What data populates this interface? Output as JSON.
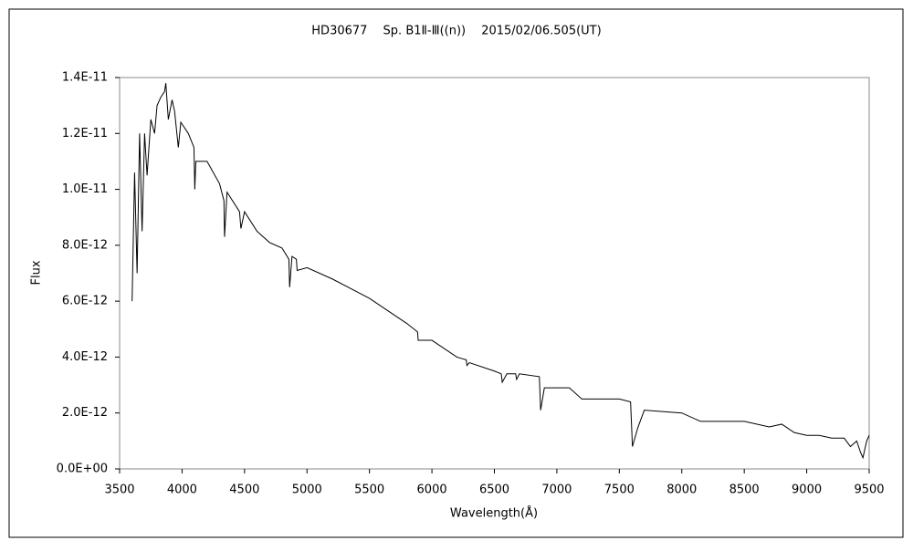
{
  "chart_data": {
    "type": "line",
    "title": "HD30677　 Sp. B1Ⅱ-Ⅲ((n))　 2015/02/06.505(UT)",
    "xlabel": "Wavelength(Å)",
    "ylabel": "Flux",
    "x": [
      3600,
      3620,
      3640,
      3660,
      3680,
      3700,
      3720,
      3750,
      3780,
      3800,
      3830,
      3860,
      3870,
      3890,
      3920,
      3940,
      3970,
      3990,
      4050,
      4095,
      4102,
      4110,
      4200,
      4300,
      4335,
      4340,
      4360,
      4460,
      4471,
      4500,
      4600,
      4700,
      4800,
      4855,
      4861,
      4880,
      4915,
      4921,
      5000,
      5200,
      5500,
      5800,
      5885,
      5890,
      6000,
      6200,
      6275,
      6280,
      6300,
      6500,
      6555,
      6563,
      6600,
      6670,
      6678,
      6700,
      6860,
      6870,
      6900,
      7000,
      7100,
      7200,
      7300,
      7500,
      7590,
      7605,
      7650,
      7700,
      8000,
      8150,
      8500,
      8700,
      8800,
      8900,
      9000,
      9100,
      9200,
      9300,
      9350,
      9400,
      9430,
      9450,
      9480,
      9500
    ],
    "series": [
      {
        "name": "Flux",
        "color": "#000000",
        "values": [
          6e-12,
          1.06e-11,
          7e-12,
          1.2e-11,
          8.5e-12,
          1.2e-11,
          1.05e-11,
          1.25e-11,
          1.2e-11,
          1.3e-11,
          1.33e-11,
          1.35e-11,
          1.38e-11,
          1.25e-11,
          1.32e-11,
          1.28e-11,
          1.15e-11,
          1.24e-11,
          1.2e-11,
          1.15e-11,
          1e-11,
          1.1e-11,
          1.1e-11,
          1.02e-11,
          9.6e-12,
          8.3e-12,
          9.9e-12,
          9.2e-12,
          8.6e-12,
          9.2e-12,
          8.5e-12,
          8.1e-12,
          7.9e-12,
          7.5e-12,
          6.5e-12,
          7.6e-12,
          7.5e-12,
          7.1e-12,
          7.2e-12,
          6.8e-12,
          6.1e-12,
          5.2e-12,
          4.9e-12,
          4.6e-12,
          4.6e-12,
          4e-12,
          3.9e-12,
          3.7e-12,
          3.8e-12,
          3.5e-12,
          3.4e-12,
          3.1e-12,
          3.4e-12,
          3.4e-12,
          3.2e-12,
          3.4e-12,
          3.3e-12,
          2.1e-12,
          2.9e-12,
          2.9e-12,
          2.9e-12,
          2.5e-12,
          2.5e-12,
          2.5e-12,
          2.4e-12,
          8e-13,
          1.5e-12,
          2.1e-12,
          2e-12,
          1.7e-12,
          1.7e-12,
          1.5e-12,
          1.6e-12,
          1.3e-12,
          1.2e-12,
          1.2e-12,
          1.1e-12,
          1.1e-12,
          8e-13,
          1e-12,
          6e-13,
          4e-13,
          1e-12,
          1.2e-12
        ]
      }
    ],
    "xlim": [
      3500,
      9500
    ],
    "xticks": [
      3500,
      4000,
      4500,
      5000,
      5500,
      6000,
      6500,
      7000,
      7500,
      8000,
      8500,
      9000,
      9500
    ],
    "ylim": [
      0,
      1.4e-11
    ],
    "yticks": [
      {
        "value": 0,
        "label": "0.0E+00"
      },
      {
        "value": 2e-12,
        "label": "2.0E-12"
      },
      {
        "value": 4e-12,
        "label": "4.0E-12"
      },
      {
        "value": 6e-12,
        "label": "6.0E-12"
      },
      {
        "value": 8e-12,
        "label": "8.0E-12"
      },
      {
        "value": 1e-11,
        "label": "1.0E-11"
      },
      {
        "value": 1.2e-11,
        "label": "1.2E-11"
      },
      {
        "value": 1.4e-11,
        "label": "1.4E-11"
      }
    ],
    "grid": false
  }
}
